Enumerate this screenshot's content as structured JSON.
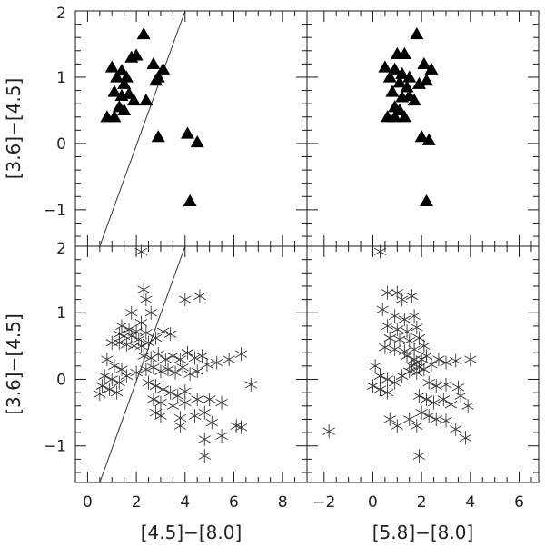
{
  "chart_data": [
    {
      "type": "scatter",
      "panel": "top-left",
      "xlim": [
        -0.5,
        9
      ],
      "ylim": [
        -1.55,
        2.0
      ],
      "xlabel": "",
      "ylabel": "[3.6]−[4.5]",
      "x_ticks": [],
      "y_ticks": [
        "2",
        "1",
        "0",
        "−1"
      ],
      "marker": "triangle",
      "line": {
        "x": [
          0.5,
          4.0
        ],
        "y": [
          -1.55,
          2.0
        ]
      },
      "points": [
        [
          1.0,
          1.15
        ],
        [
          1.4,
          1.1
        ],
        [
          1.6,
          1.0
        ],
        [
          1.8,
          1.3
        ],
        [
          2.0,
          1.33
        ],
        [
          2.3,
          1.65
        ],
        [
          1.2,
          1.0
        ],
        [
          1.5,
          0.9
        ],
        [
          1.1,
          0.78
        ],
        [
          1.4,
          0.72
        ],
        [
          1.7,
          0.75
        ],
        [
          1.9,
          0.65
        ],
        [
          2.4,
          0.65
        ],
        [
          2.7,
          1.2
        ],
        [
          3.1,
          1.12
        ],
        [
          2.8,
          0.95
        ],
        [
          2.9,
          1.0
        ],
        [
          1.3,
          0.55
        ],
        [
          1.5,
          0.5
        ],
        [
          0.8,
          0.4
        ],
        [
          1.1,
          0.4
        ],
        [
          2.9,
          0.1
        ],
        [
          4.1,
          0.15
        ],
        [
          4.5,
          0.02
        ],
        [
          4.2,
          -0.87
        ]
      ]
    },
    {
      "type": "scatter",
      "panel": "top-right",
      "xlim": [
        -2.7,
        6.8
      ],
      "ylim": [
        -1.55,
        2.0
      ],
      "xlabel": "",
      "ylabel": "",
      "x_ticks": [],
      "y_ticks": [],
      "marker": "triangle",
      "points": [
        [
          0.5,
          1.15
        ],
        [
          0.9,
          1.12
        ],
        [
          1.2,
          1.05
        ],
        [
          1.5,
          1.0
        ],
        [
          1.3,
          1.35
        ],
        [
          1.0,
          1.35
        ],
        [
          1.8,
          1.65
        ],
        [
          0.7,
          1.0
        ],
        [
          1.1,
          0.92
        ],
        [
          1.4,
          0.85
        ],
        [
          0.8,
          0.78
        ],
        [
          1.2,
          0.7
        ],
        [
          1.5,
          0.72
        ],
        [
          1.7,
          0.65
        ],
        [
          2.1,
          1.2
        ],
        [
          2.4,
          1.12
        ],
        [
          2.2,
          0.95
        ],
        [
          1.9,
          0.9
        ],
        [
          0.9,
          0.55
        ],
        [
          1.1,
          0.5
        ],
        [
          0.6,
          0.4
        ],
        [
          0.9,
          0.4
        ],
        [
          1.3,
          0.4
        ],
        [
          2.0,
          0.1
        ],
        [
          2.3,
          0.05
        ],
        [
          2.2,
          -0.87
        ]
      ]
    },
    {
      "type": "scatter",
      "panel": "bottom-left",
      "xlim": [
        -0.5,
        9
      ],
      "ylim": [
        -1.55,
        2.0
      ],
      "xlabel": "[4.5]−[8.0]",
      "ylabel": "[3.6]−[4.5]",
      "x_ticks": [
        "0",
        "2",
        "4",
        "6",
        "8"
      ],
      "y_ticks": [
        "2",
        "1",
        "0",
        "−1"
      ],
      "marker": "asterisk",
      "line": {
        "x": [
          0.5,
          4.0
        ],
        "y": [
          -1.55,
          2.0
        ]
      },
      "points": [
        [
          2.2,
          1.92
        ],
        [
          2.3,
          1.35
        ],
        [
          2.4,
          1.2
        ],
        [
          2.6,
          1.0
        ],
        [
          1.8,
          1.0
        ],
        [
          2.2,
          0.85
        ],
        [
          1.4,
          0.8
        ],
        [
          1.7,
          0.75
        ],
        [
          2.0,
          0.72
        ],
        [
          2.4,
          0.7
        ],
        [
          1.3,
          0.68
        ],
        [
          1.5,
          0.65
        ],
        [
          1.8,
          0.65
        ],
        [
          2.1,
          0.6
        ],
        [
          1.0,
          0.55
        ],
        [
          1.3,
          0.55
        ],
        [
          1.6,
          0.52
        ],
        [
          1.9,
          0.5
        ],
        [
          2.2,
          0.5
        ],
        [
          2.5,
          0.55
        ],
        [
          2.8,
          0.62
        ],
        [
          3.1,
          0.72
        ],
        [
          3.4,
          0.68
        ],
        [
          4.0,
          1.2
        ],
        [
          4.6,
          1.25
        ],
        [
          2.3,
          0.35
        ],
        [
          2.6,
          0.32
        ],
        [
          2.9,
          0.38
        ],
        [
          3.2,
          0.3
        ],
        [
          3.5,
          0.35
        ],
        [
          3.8,
          0.3
        ],
        [
          4.1,
          0.4
        ],
        [
          4.4,
          0.32
        ],
        [
          4.7,
          0.35
        ],
        [
          4.9,
          0.22
        ],
        [
          5.3,
          0.25
        ],
        [
          5.8,
          0.3
        ],
        [
          6.3,
          0.38
        ],
        [
          2.4,
          0.15
        ],
        [
          2.7,
          0.18
        ],
        [
          3.0,
          0.12
        ],
        [
          3.3,
          0.15
        ],
        [
          3.6,
          0.1
        ],
        [
          3.9,
          0.18
        ],
        [
          4.2,
          0.08
        ],
        [
          4.5,
          0.12
        ],
        [
          0.8,
          0.3
        ],
        [
          1.1,
          0.2
        ],
        [
          1.4,
          0.15
        ],
        [
          0.7,
          0.05
        ],
        [
          1.0,
          0.0
        ],
        [
          1.3,
          -0.05
        ],
        [
          0.6,
          -0.1
        ],
        [
          0.9,
          -0.15
        ],
        [
          1.2,
          -0.2
        ],
        [
          1.6,
          0.05
        ],
        [
          2.0,
          0.1
        ],
        [
          0.5,
          -0.22
        ],
        [
          2.5,
          -0.05
        ],
        [
          2.8,
          -0.1
        ],
        [
          3.1,
          -0.15
        ],
        [
          3.4,
          -0.2
        ],
        [
          3.7,
          -0.25
        ],
        [
          4.0,
          -0.18
        ],
        [
          2.7,
          -0.3
        ],
        [
          3.0,
          -0.35
        ],
        [
          3.5,
          -0.4
        ],
        [
          4.0,
          -0.35
        ],
        [
          4.5,
          -0.3
        ],
        [
          5.0,
          -0.3
        ],
        [
          5.5,
          -0.35
        ],
        [
          6.7,
          -0.08
        ],
        [
          2.8,
          -0.5
        ],
        [
          3.0,
          -0.55
        ],
        [
          3.8,
          -0.58
        ],
        [
          4.4,
          -0.55
        ],
        [
          4.8,
          -0.5
        ],
        [
          5.1,
          -0.65
        ],
        [
          6.1,
          -0.7
        ],
        [
          6.3,
          -0.72
        ],
        [
          4.8,
          -0.9
        ],
        [
          5.5,
          -0.85
        ],
        [
          3.8,
          -0.7
        ],
        [
          4.8,
          -1.15
        ]
      ]
    },
    {
      "type": "scatter",
      "panel": "bottom-right",
      "xlim": [
        -2.7,
        6.8
      ],
      "ylim": [
        -1.55,
        2.0
      ],
      "xlabel": "[5.8]−[8.0]",
      "ylabel": "",
      "x_ticks": [
        "−2",
        "0",
        "2",
        "4",
        "6"
      ],
      "y_ticks": [],
      "marker": "asterisk",
      "points": [
        [
          0.3,
          1.92
        ],
        [
          0.6,
          1.3
        ],
        [
          1.0,
          1.3
        ],
        [
          1.2,
          1.2
        ],
        [
          1.6,
          1.25
        ],
        [
          0.4,
          1.05
        ],
        [
          0.9,
          0.95
        ],
        [
          1.3,
          0.9
        ],
        [
          1.7,
          0.95
        ],
        [
          0.6,
          0.8
        ],
        [
          1.0,
          0.75
        ],
        [
          1.4,
          0.72
        ],
        [
          1.8,
          0.78
        ],
        [
          0.7,
          0.62
        ],
        [
          1.1,
          0.6
        ],
        [
          1.5,
          0.58
        ],
        [
          1.9,
          0.62
        ],
        [
          0.5,
          0.48
        ],
        [
          0.9,
          0.45
        ],
        [
          1.3,
          0.42
        ],
        [
          1.7,
          0.45
        ],
        [
          2.1,
          0.5
        ],
        [
          1.4,
          0.35
        ],
        [
          1.7,
          0.3
        ],
        [
          1.8,
          0.25
        ],
        [
          2.0,
          0.3
        ],
        [
          2.2,
          0.35
        ],
        [
          1.6,
          0.2
        ],
        [
          1.9,
          0.18
        ],
        [
          1.5,
          0.12
        ],
        [
          1.8,
          0.1
        ],
        [
          2.1,
          0.15
        ],
        [
          2.4,
          0.22
        ],
        [
          2.7,
          0.3
        ],
        [
          3.0,
          0.25
        ],
        [
          3.4,
          0.28
        ],
        [
          4.0,
          0.3
        ],
        [
          0.1,
          0.2
        ],
        [
          0.3,
          0.05
        ],
        [
          0.6,
          0.0
        ],
        [
          0.0,
          -0.1
        ],
        [
          0.3,
          -0.15
        ],
        [
          0.6,
          -0.2
        ],
        [
          0.9,
          -0.05
        ],
        [
          1.2,
          0.05
        ],
        [
          2.3,
          -0.05
        ],
        [
          2.6,
          -0.1
        ],
        [
          3.0,
          -0.08
        ],
        [
          3.5,
          -0.12
        ],
        [
          1.9,
          -0.25
        ],
        [
          2.2,
          -0.3
        ],
        [
          2.5,
          -0.35
        ],
        [
          2.9,
          -0.3
        ],
        [
          3.2,
          -0.38
        ],
        [
          3.6,
          -0.25
        ],
        [
          3.9,
          -0.4
        ],
        [
          2.0,
          -0.5
        ],
        [
          2.3,
          -0.55
        ],
        [
          2.6,
          -0.6
        ],
        [
          3.0,
          -0.62
        ],
        [
          3.4,
          -0.75
        ],
        [
          0.7,
          -0.6
        ],
        [
          1.0,
          -0.7
        ],
        [
          1.5,
          -0.6
        ],
        [
          1.8,
          -0.7
        ],
        [
          -1.8,
          -0.78
        ],
        [
          3.8,
          -0.88
        ],
        [
          1.9,
          -1.15
        ]
      ]
    }
  ]
}
